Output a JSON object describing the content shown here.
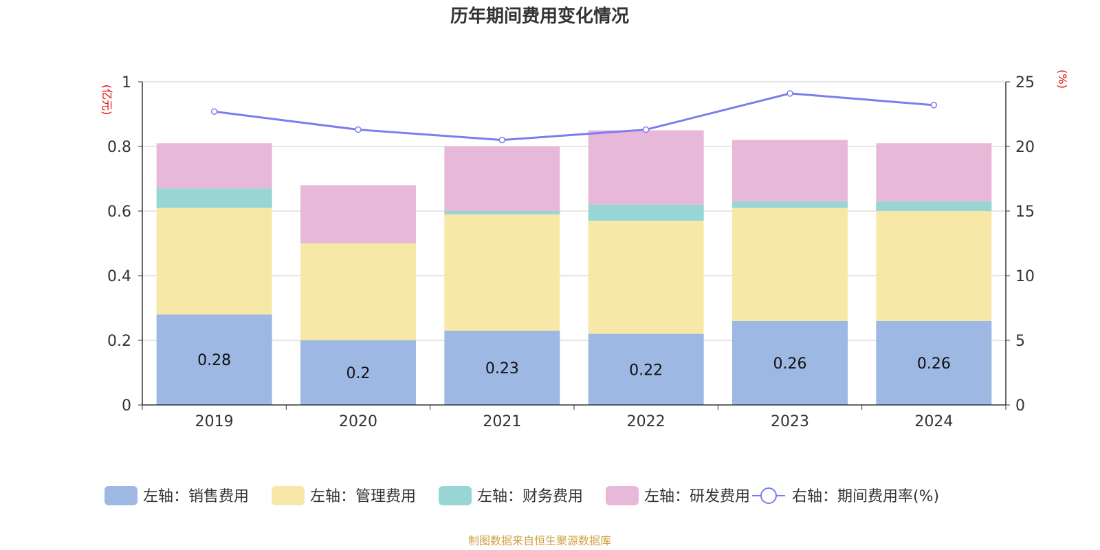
{
  "chart_data": {
    "type": "bar",
    "stacked": true,
    "title": "历年期间费用变化情况",
    "categories": [
      "2019",
      "2020",
      "2021",
      "2022",
      "2023",
      "2024"
    ],
    "left_axis": {
      "unit": "(亿元)",
      "ylim": [
        0,
        1
      ],
      "ticks": [
        "0",
        "0.2",
        "0.4",
        "0.6",
        "0.8",
        "1"
      ]
    },
    "right_axis": {
      "unit": "(%)",
      "ylim": [
        0,
        25
      ],
      "ticks": [
        "0",
        "5",
        "10",
        "15",
        "20",
        "25"
      ]
    },
    "series": [
      {
        "name": "左轴：销售费用",
        "color": "#9db8e2",
        "values": [
          0.28,
          0.2,
          0.23,
          0.22,
          0.26,
          0.26
        ],
        "labels": [
          "0.28",
          "0.2",
          "0.23",
          "0.22",
          "0.26",
          "0.26"
        ]
      },
      {
        "name": "左轴：管理费用",
        "color": "#f8e8a8",
        "values": [
          0.33,
          0.3,
          0.36,
          0.35,
          0.35,
          0.34
        ]
      },
      {
        "name": "左轴：财务费用",
        "color": "#98d5d5",
        "values": [
          0.06,
          0.0,
          0.01,
          0.05,
          0.02,
          0.03
        ]
      },
      {
        "name": "左轴：研发费用",
        "color": "#e8b8d8",
        "values": [
          0.14,
          0.18,
          0.2,
          0.23,
          0.19,
          0.18
        ]
      }
    ],
    "line": {
      "name": "右轴：期间费用率(%)",
      "color": "#7b7cf0",
      "values": [
        22.7,
        21.3,
        20.5,
        21.3,
        24.1,
        23.2
      ]
    },
    "grid": true,
    "legend_position": "bottom"
  },
  "footer": {
    "source": "制图数据来自恒生聚源数据库"
  }
}
